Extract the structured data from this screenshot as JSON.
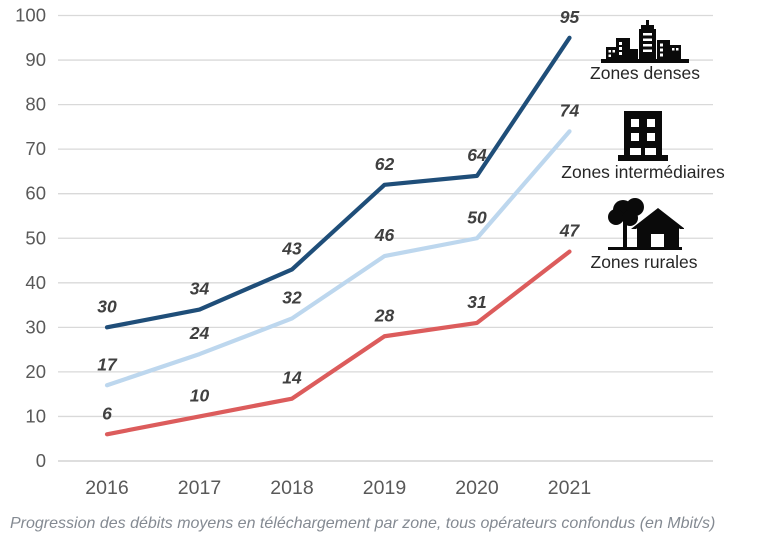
{
  "chart_data": {
    "type": "line",
    "x_labels": [
      "2016",
      "2017",
      "2018",
      "2019",
      "2020",
      "2021"
    ],
    "series": [
      {
        "name": "Zones denses",
        "values": [
          30,
          34,
          43,
          62,
          64,
          95
        ],
        "color": "#1F4E79",
        "icon": "city-skyline-icon"
      },
      {
        "name": "Zones intermédiaires",
        "values": [
          17,
          24,
          32,
          46,
          50,
          74
        ],
        "color": "#BDD7EE",
        "icon": "apartment-building-icon"
      },
      {
        "name": "Zones rurales",
        "values": [
          6,
          10,
          14,
          28,
          31,
          47
        ],
        "color": "#DC5C5C",
        "icon": "house-and-tree-icon"
      }
    ],
    "ylim": [
      0,
      100
    ],
    "ytick_step": 10,
    "grid": true,
    "legend_position": "right-overlay",
    "caption": "Progression des débits moyens en téléchargement par zone, tous opérateurs confondus (en Mbit/s)"
  },
  "colors": {
    "gridline": "#D9D9D9",
    "zero_gridline": "#C9C9C9",
    "axis_text": "#595959",
    "data_label_text": "#404040",
    "legend_text": "#262626",
    "caption_text": "#848A92",
    "icon": "#0A0A0A"
  }
}
